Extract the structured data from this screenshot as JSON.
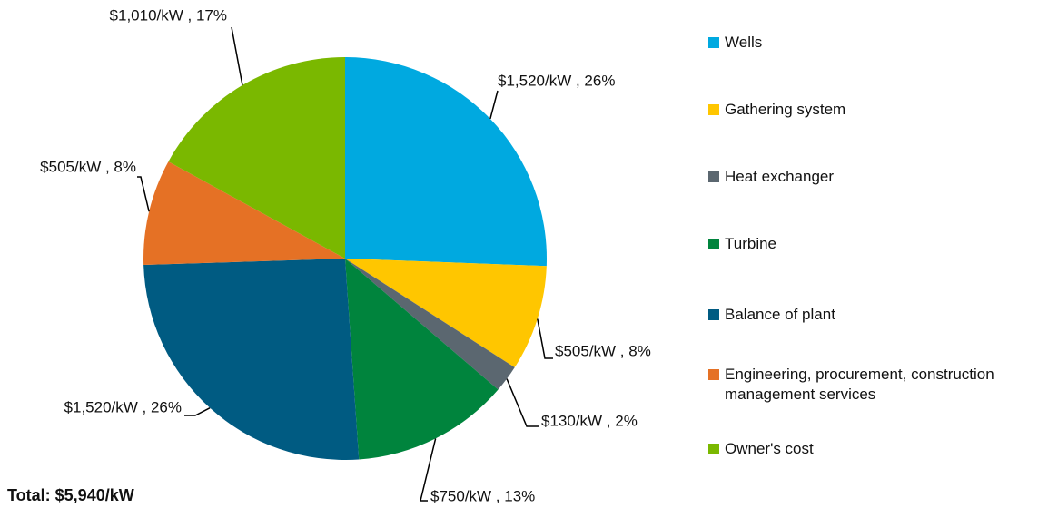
{
  "chart_data": {
    "type": "pie",
    "categories": [
      "Wells",
      "Gathering system",
      "Heat exchanger",
      "Turbine",
      "Balance of plant",
      "Engineering, procurement, construction management services",
      "Owner's cost"
    ],
    "values": [
      1520,
      505,
      130,
      750,
      1520,
      505,
      1010
    ],
    "value_labels": [
      "$1,520/kW , 26%",
      "$505/kW , 8%",
      "$130/kW , 2%",
      "$750/kW , 13%",
      "$1,520/kW , 26%",
      "$505/kW , 8%",
      "$1,010/kW , 17%"
    ],
    "colors": [
      "#00a9e0",
      "#ffc600",
      "#5b6770",
      "#00843d",
      "#005b82",
      "#e57125",
      "#7ab800"
    ],
    "annotation": "Total: $5,940/kW",
    "legend": "right"
  }
}
